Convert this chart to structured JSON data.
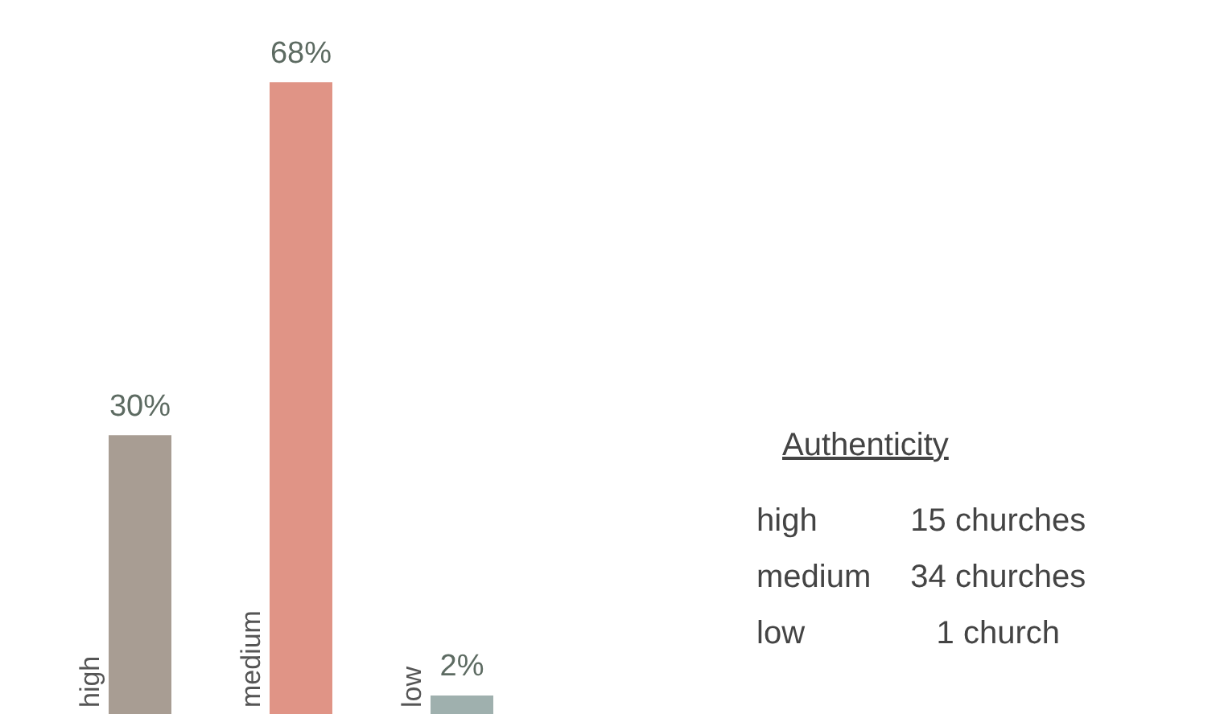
{
  "chart_data": {
    "type": "bar",
    "categories": [
      "high",
      "medium",
      "low"
    ],
    "values": [
      30,
      68,
      2
    ],
    "colors": [
      "#a89d93",
      "#e09486",
      "#9fb0ae"
    ],
    "value_labels": [
      "30%",
      "68%",
      "2%"
    ],
    "legend_title": "Authenticity",
    "annotations": [
      "15 churches",
      "34 churches",
      "1 church"
    ]
  }
}
